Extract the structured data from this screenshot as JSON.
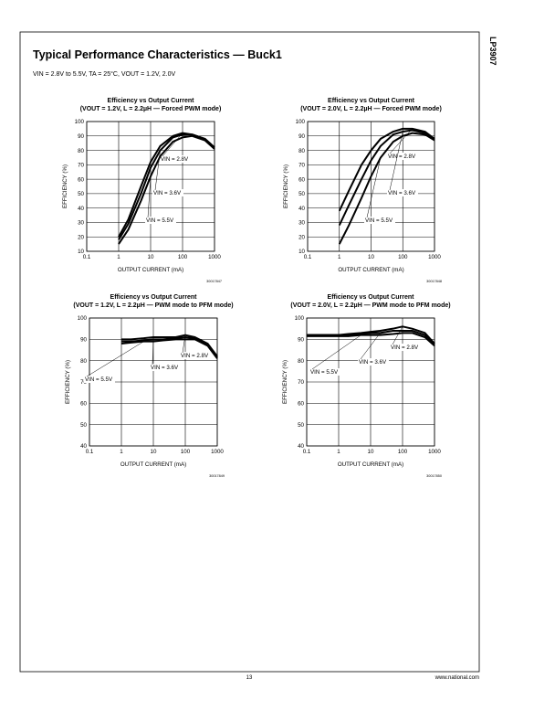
{
  "header": {
    "title": "Typical Performance Characteristics — Buck1",
    "conditions": "VIN = 2.8V to 5.5V, TA = 25°C, VOUT = 1.2V, 2.0V",
    "part": "LP3907"
  },
  "footer": {
    "page": "13",
    "site": "www.national.com"
  },
  "chart_data": [
    {
      "type": "line",
      "title": "Efficiency vs Output Current",
      "subtitle": "(VOUT = 1.2V, L = 2.2µH — Forced PWM mode)",
      "xlabel": "OUTPUT CURRENT (mA)",
      "ylabel": "EFFICIENCY (%)",
      "figure_id": "30017847",
      "xscale": "log",
      "grid": true,
      "x": [
        1,
        2,
        5,
        10,
        20,
        50,
        100,
        200,
        500,
        1000
      ],
      "xlim": [
        0.1,
        1000
      ],
      "xticks": [
        0.1,
        1,
        10,
        100,
        1000
      ],
      "ylim": [
        10,
        100
      ],
      "yticks": [
        10,
        20,
        30,
        40,
        50,
        60,
        70,
        80,
        90,
        100
      ],
      "series": [
        {
          "name": "VIN = 2.8V",
          "color": "#000000",
          "values": [
            20,
            32,
            55,
            72,
            83,
            90,
            92,
            91,
            88,
            82
          ]
        },
        {
          "name": "VIN = 3.6V",
          "color": "#000000",
          "values": [
            18,
            29,
            50,
            68,
            80,
            89,
            91,
            91,
            88,
            82
          ]
        },
        {
          "name": "VIN = 5.5V",
          "color": "#000000",
          "values": [
            15,
            25,
            45,
            62,
            76,
            86,
            89,
            90,
            87,
            81
          ]
        }
      ]
    },
    {
      "type": "line",
      "title": "Efficiency vs Output Current",
      "subtitle": "(VOUT = 2.0V, L = 2.2µH — Forced PWM mode)",
      "xlabel": "OUTPUT CURRENT (mA)",
      "ylabel": "EFFICIENCY (%)",
      "figure_id": "30017848",
      "xscale": "log",
      "grid": true,
      "x": [
        1,
        2,
        5,
        10,
        20,
        50,
        100,
        200,
        500,
        1000
      ],
      "xlim": [
        0.1,
        1000
      ],
      "xticks": [
        0.1,
        1,
        10,
        100,
        1000
      ],
      "ylim": [
        10,
        100
      ],
      "yticks": [
        10,
        20,
        30,
        40,
        50,
        60,
        70,
        80,
        90,
        100
      ],
      "series": [
        {
          "name": "VIN = 2.8V",
          "color": "#000000",
          "values": [
            38,
            52,
            70,
            80,
            88,
            93,
            95,
            95,
            93,
            88
          ]
        },
        {
          "name": "VIN = 3.6V",
          "color": "#000000",
          "values": [
            28,
            42,
            60,
            73,
            83,
            91,
            93,
            94,
            92,
            88
          ]
        },
        {
          "name": "VIN = 5.5V",
          "color": "#000000",
          "values": [
            15,
            28,
            47,
            62,
            75,
            86,
            90,
            92,
            91,
            87
          ]
        }
      ]
    },
    {
      "type": "line",
      "title": "Efficiency vs Output Current",
      "subtitle": "(VOUT = 1.2V, L = 2.2µH — PWM mode to PFM mode)",
      "xlabel": "OUTPUT CURRENT (mA)",
      "ylabel": "EFFICIENCY (%)",
      "figure_id": "30017849",
      "xscale": "log",
      "grid": true,
      "x": [
        1,
        2,
        5,
        10,
        20,
        50,
        100,
        200,
        500,
        1000
      ],
      "xlim": [
        0.1,
        1000
      ],
      "xticks": [
        0.1,
        1,
        10,
        100,
        1000
      ],
      "ylim": [
        40,
        100
      ],
      "yticks": [
        40,
        50,
        60,
        70,
        80,
        90,
        100
      ],
      "series": [
        {
          "name": "VIN = 2.8V",
          "color": "#000000",
          "values": [
            90,
            90,
            90.5,
            91,
            91,
            91,
            92,
            91,
            88,
            82
          ]
        },
        {
          "name": "VIN = 3.6V",
          "color": "#000000",
          "values": [
            89,
            89,
            89.5,
            90,
            90,
            90.5,
            91,
            90.5,
            87.5,
            81.5
          ]
        },
        {
          "name": "VIN = 5.5V",
          "color": "#000000",
          "values": [
            88,
            88.5,
            89,
            89,
            89.5,
            90,
            90,
            90,
            87,
            81
          ]
        }
      ]
    },
    {
      "type": "line",
      "title": "Efficiency vs Output Current",
      "subtitle": "(VOUT = 2.0V, L = 2.2µH — PWM mode to PFM mode)",
      "xlabel": "OUTPUT CURRENT (mA)",
      "ylabel": "EFFICIENCY (%)",
      "figure_id": "30017850",
      "xscale": "log",
      "grid": true,
      "x": [
        0.1,
        0.2,
        0.5,
        1,
        2,
        5,
        10,
        20,
        50,
        100,
        200,
        500,
        1000
      ],
      "xlim": [
        0.1,
        1000
      ],
      "xticks": [
        0.1,
        1,
        10,
        100,
        1000
      ],
      "ylim": [
        40,
        100
      ],
      "yticks": [
        40,
        50,
        60,
        70,
        80,
        90,
        100
      ],
      "series": [
        {
          "name": "VIN = 2.8V",
          "color": "#000000",
          "values": [
            92,
            92,
            92,
            92,
            92.5,
            93,
            93.5,
            94,
            95,
            96,
            95,
            93,
            88
          ]
        },
        {
          "name": "VIN = 3.6V",
          "color": "#000000",
          "values": [
            92,
            92,
            92,
            92,
            92,
            92.5,
            93,
            93,
            94,
            94,
            94,
            92,
            88
          ]
        },
        {
          "name": "VIN = 5.5V",
          "color": "#000000",
          "values": [
            91.5,
            91.5,
            91.5,
            91.5,
            91.5,
            92,
            92,
            92,
            92.5,
            93,
            93,
            91,
            87
          ]
        }
      ]
    }
  ]
}
